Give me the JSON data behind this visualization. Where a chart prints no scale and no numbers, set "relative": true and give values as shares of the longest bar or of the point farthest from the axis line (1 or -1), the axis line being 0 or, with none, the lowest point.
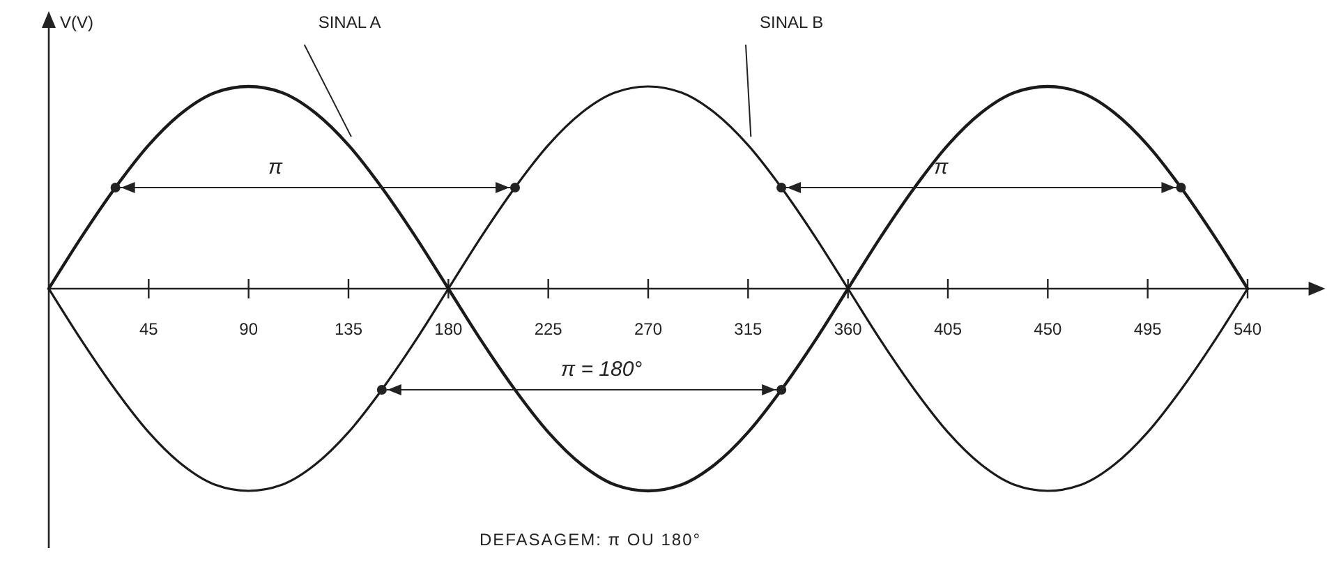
{
  "chart_data": {
    "type": "line",
    "relative": true,
    "ylabel": "V(V)",
    "x": [
      0,
      15,
      30,
      45,
      60,
      75,
      90,
      105,
      120,
      135,
      150,
      165,
      180,
      195,
      210,
      225,
      240,
      255,
      270,
      285,
      300,
      315,
      330,
      345,
      360,
      375,
      390,
      405,
      420,
      435,
      450,
      465,
      480,
      495,
      510,
      525,
      540
    ],
    "xlim": [
      0,
      570
    ],
    "xticks": [
      45,
      90,
      135,
      180,
      225,
      270,
      315,
      360,
      405,
      450,
      495,
      540
    ],
    "series": [
      {
        "name": "SINAL A",
        "color": "#1a1a1a",
        "values": [
          0,
          0.26,
          0.5,
          0.71,
          0.87,
          0.97,
          1,
          0.97,
          0.87,
          0.71,
          0.5,
          0.26,
          0,
          -0.26,
          -0.5,
          -0.71,
          -0.87,
          -0.97,
          -1,
          -0.97,
          -0.87,
          -0.71,
          -0.5,
          -0.26,
          0,
          0.26,
          0.5,
          0.71,
          0.87,
          0.97,
          1,
          0.97,
          0.87,
          0.71,
          0.5,
          0.26,
          0
        ]
      },
      {
        "name": "SINAL B",
        "color": "#1a1a1a",
        "values": [
          0,
          -0.26,
          -0.5,
          -0.71,
          -0.87,
          -0.97,
          -1,
          -0.97,
          -0.87,
          -0.71,
          -0.5,
          -0.26,
          0,
          0.26,
          0.5,
          0.71,
          0.87,
          0.97,
          1,
          0.97,
          0.87,
          0.71,
          0.5,
          0.26,
          0,
          -0.26,
          -0.5,
          -0.71,
          -0.87,
          -0.97,
          -1,
          -0.97,
          -0.87,
          -0.71,
          -0.5,
          -0.26,
          0
        ]
      }
    ],
    "annotations": [
      "π",
      "π",
      "π = 180°",
      "DEFASAGEM: π OU 180°"
    ],
    "marker": "none",
    "line_style": "solid"
  }
}
